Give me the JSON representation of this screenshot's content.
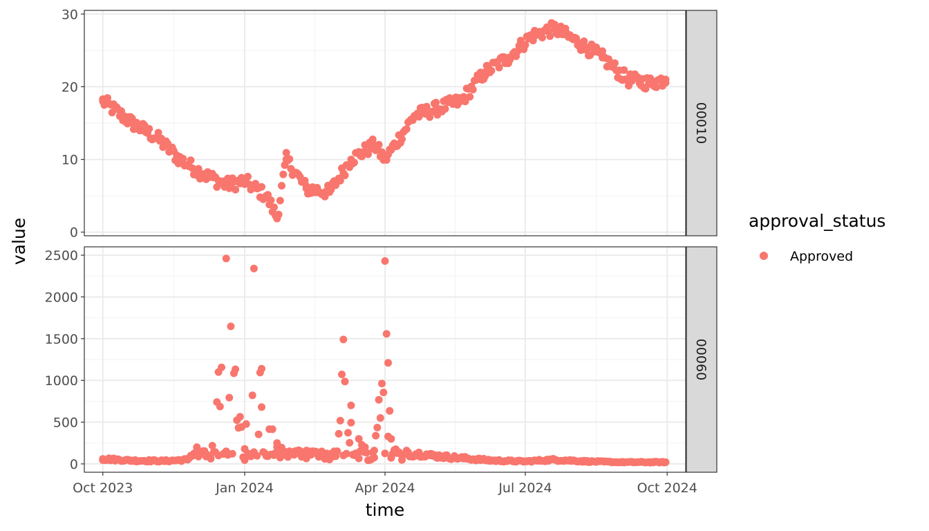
{
  "chart_data": {
    "type": "scatter",
    "xlabel": "time",
    "ylabel": "value",
    "x_ticks": [
      "Oct 2023",
      "Jan 2024",
      "Apr 2024",
      "Jul 2024",
      "Oct 2024"
    ],
    "x_tick_dates": [
      "2023-10-01",
      "2024-01-01",
      "2024-04-01",
      "2024-07-01",
      "2024-10-01"
    ],
    "xlim": [
      "2023-09-19",
      "2024-10-13"
    ],
    "legend": {
      "title": "approval_status",
      "position": "right",
      "entries": [
        "Approved"
      ]
    },
    "series_color": "#F8766D",
    "grid": true,
    "facets": [
      {
        "strip": "00010",
        "ylim": [
          -0.5,
          30.5
        ],
        "y_ticks": [
          0,
          10,
          20,
          30
        ],
        "series": [
          {
            "name": "Approved",
            "x": [
              "2023-10-01",
              "2023-10-20",
              "2023-11-05",
              "2023-11-20",
              "2023-12-05",
              "2023-12-20",
              "2024-01-01",
              "2024-01-15",
              "2024-01-22",
              "2024-01-28",
              "2024-02-10",
              "2024-02-25",
              "2024-03-10",
              "2024-03-25",
              "2024-04-01",
              "2024-04-20",
              "2024-05-05",
              "2024-05-20",
              "2024-06-05",
              "2024-06-20",
              "2024-07-05",
              "2024-07-20",
              "2024-08-05",
              "2024-08-20",
              "2024-09-05",
              "2024-09-20",
              "2024-09-30"
            ],
            "y": [
              18,
              15,
              13,
              10,
              8,
              6.5,
              7,
              5,
              2,
              10,
              6,
              5.5,
              10,
              12,
              10,
              16,
              17,
              18,
              22,
              24,
              27,
              28,
              26,
              24,
              21,
              20.5,
              21
            ]
          }
        ]
      },
      {
        "strip": "00060",
        "ylim": [
          -100,
          2600
        ],
        "y_ticks": [
          0,
          500,
          1000,
          1500,
          2000,
          2500
        ],
        "series": [
          {
            "name": "Approved",
            "x": [
              "2023-10-01",
              "2023-10-20",
              "2023-11-10",
              "2023-11-25",
              "2023-12-01",
              "2023-12-10",
              "2023-12-15",
              "2023-12-20",
              "2024-01-01",
              "2024-01-07",
              "2024-01-12",
              "2024-01-22",
              "2024-02-10",
              "2024-02-28",
              "2024-03-05",
              "2024-03-10",
              "2024-03-15",
              "2024-03-25",
              "2024-04-01",
              "2024-04-03",
              "2024-04-05",
              "2024-04-15",
              "2024-05-01",
              "2024-05-20",
              "2024-06-10",
              "2024-07-01",
              "2024-07-20",
              "2024-08-10",
              "2024-09-01",
              "2024-09-30"
            ],
            "y": [
              60,
              40,
              35,
              50,
              200,
              70,
              1100,
              2460,
              180,
              2340,
              1140,
              250,
              160,
              150,
              1490,
              700,
              300,
              160,
              2430,
              1210,
              300,
              160,
              100,
              70,
              40,
              30,
              50,
              30,
              20,
              20
            ]
          }
        ]
      }
    ]
  }
}
